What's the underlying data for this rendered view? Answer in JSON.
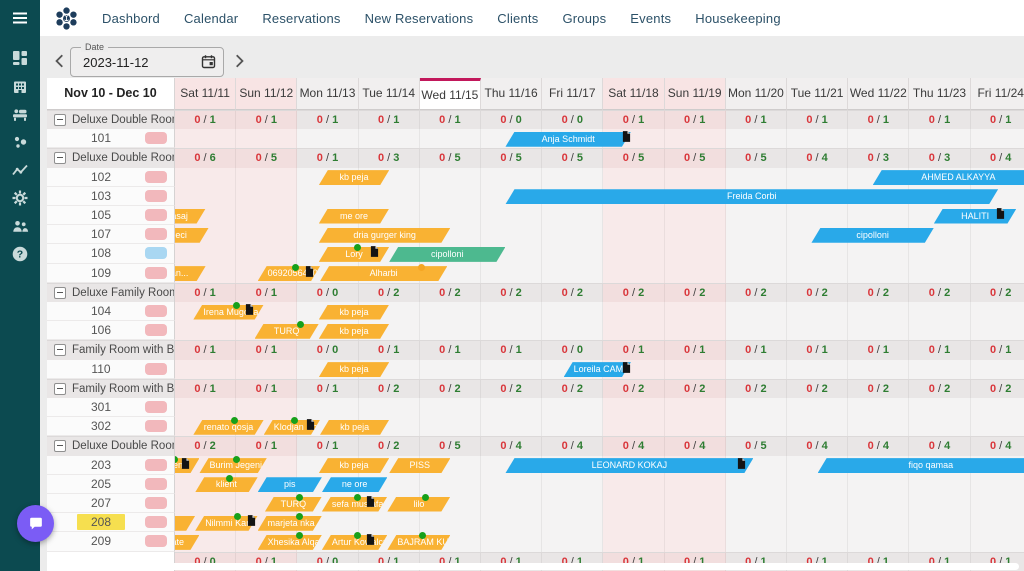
{
  "app_nav": {
    "items": [
      "Dashbord",
      "Calendar",
      "Reservations",
      "New Reservations",
      "Clients",
      "Groups",
      "Events",
      "Housekeeping"
    ]
  },
  "sidebar": {
    "icons": [
      "menu-icon",
      "dashboard-icon",
      "hotel-icon",
      "front-desk-icon",
      "clients-icon",
      "analytics-icon",
      "settings-gear-icon",
      "users-icon",
      "help-icon"
    ],
    "chat_fab_icon": "chat-bubble-icon"
  },
  "toolbar": {
    "date_label": "Date",
    "date_value": "2023-11-12",
    "prev_icon": "chevron-left-icon",
    "next_icon": "chevron-right-icon",
    "calendar_icon": "calendar-icon"
  },
  "grid": {
    "range_label": "Nov 10 - Dec 10",
    "today_index": 4,
    "days": [
      {
        "label": "Sat 11/11",
        "weekend": true
      },
      {
        "label": "Sun 11/12",
        "weekend": true
      },
      {
        "label": "Mon 11/13",
        "weekend": false
      },
      {
        "label": "Tue 11/14",
        "weekend": false
      },
      {
        "label": "Wed 11/15",
        "weekend": false
      },
      {
        "label": "Thu 11/16",
        "weekend": false
      },
      {
        "label": "Fri 11/17",
        "weekend": false
      },
      {
        "label": "Sat 11/18",
        "weekend": true
      },
      {
        "label": "Sun 11/19",
        "weekend": true
      },
      {
        "label": "Mon 11/20",
        "weekend": false
      },
      {
        "label": "Tue 11/21",
        "weekend": false
      },
      {
        "label": "Wed 11/22",
        "weekend": false
      },
      {
        "label": "Thu 11/23",
        "weekend": false
      },
      {
        "label": "Fri 11/24",
        "weekend": false
      }
    ],
    "colors": {
      "bar_yellow": "#F9B233",
      "bar_blue": "#29A9E9",
      "bar_green": "#4DB98F",
      "occupied_red": "#D9363B",
      "free_green": "#2E7D32",
      "today_accent": "#C2185B",
      "pill_pink": "#F2B8BC",
      "pill_blue": "#A9D7F2",
      "room_highlight_yellow": "#F6DF4F",
      "fab_purple": "#7B5CF5",
      "sidebar_teal": "#0C4A50"
    },
    "sections": [
      {
        "label": "Deluxe Double Room",
        "occupancy": [
          "0/1",
          "0/1",
          "0/1",
          "0/1",
          "0/1",
          "0/0",
          "0/0",
          "0/1",
          "0/1",
          "0/1",
          "0/1",
          "0/1",
          "0/1",
          "0/1"
        ],
        "rooms": [
          {
            "number": "101",
            "pill": "pink",
            "bars": [
              {
                "label": "Anja Schmidt",
                "color": "blue",
                "start": 5.4,
                "end": 7.45,
                "markers": [
                  [
                    "d",
                    0.96
                  ]
                ]
              }
            ]
          }
        ]
      },
      {
        "label": "Deluxe Double Room wi",
        "occupancy": [
          "0/6",
          "0/5",
          "0/1",
          "0/3",
          "0/5",
          "0/5",
          "0/5",
          "0/5",
          "0/5",
          "0/5",
          "0/4",
          "0/3",
          "0/3",
          "0/4"
        ],
        "rooms": [
          {
            "number": "102",
            "pill": "pink",
            "bars": [
              {
                "label": "kb peja",
                "color": "yellow",
                "start": 2.35,
                "end": 3.5,
                "markers": []
              },
              {
                "label": "AHMED ALKAYYA",
                "color": "blue",
                "start": 11.4,
                "end": 14.2,
                "markers": []
              }
            ]
          },
          {
            "number": "103",
            "pill": "pink",
            "bars": [
              {
                "label": "Freida Corbi",
                "color": "blue",
                "start": 5.4,
                "end": 13.45,
                "markers": []
              }
            ]
          },
          {
            "number": "105",
            "pill": "pink",
            "bars": [
              {
                "label": "asaj",
                "color": "yellow",
                "start": -0.35,
                "end": 0.5,
                "markers": [
                  [
                    "g",
                    0.1
                  ]
                ]
              },
              {
                "label": "me ore",
                "color": "yellow",
                "start": 2.35,
                "end": 3.5,
                "markers": []
              },
              {
                "label": "HALITI",
                "color": "blue",
                "start": 12.4,
                "end": 13.75,
                "markers": [
                  [
                    "d",
                    0.8
                  ]
                ]
              }
            ]
          },
          {
            "number": "107",
            "pill": "pink",
            "bars": [
              {
                "label": "eci",
                "color": "yellow",
                "start": -0.35,
                "end": 0.55,
                "markers": []
              },
              {
                "label": "dria gurger king",
                "color": "yellow",
                "start": 2.35,
                "end": 4.5,
                "markers": []
              },
              {
                "label": "cipolloni",
                "color": "blue",
                "start": 10.4,
                "end": 12.4,
                "markers": []
              }
            ]
          },
          {
            "number": "108",
            "pill": "blue",
            "bars": [
              {
                "label": "Lory",
                "color": "yellow",
                "start": 2.35,
                "end": 3.5,
                "markers": [
                  [
                    "g",
                    0.55
                  ],
                  [
                    "d",
                    0.78
                  ]
                ]
              },
              {
                "label": "cipolloni",
                "color": "green",
                "start": 3.5,
                "end": 5.4,
                "markers": []
              }
            ]
          },
          {
            "number": "109",
            "pill": "pink",
            "bars": [
              {
                "label": "an...",
                "color": "yellow",
                "start": -0.35,
                "end": 0.5,
                "markers": [
                  [
                    "g",
                    0.1
                  ]
                ]
              },
              {
                "label": "0692056400",
                "color": "yellow",
                "start": 1.35,
                "end": 2.37,
                "markers": [
                  [
                    "g",
                    0.6
                  ],
                  [
                    "d",
                    0.82
                  ]
                ]
              },
              {
                "label": "Alharbi",
                "color": "yellow",
                "start": 2.37,
                "end": 4.45,
                "markers": [
                  [
                    "o",
                    0.8
                  ]
                ]
              }
            ]
          }
        ]
      },
      {
        "label": "Deluxe Family Room",
        "occupancy": [
          "0/1",
          "0/1",
          "0/0",
          "0/2",
          "0/2",
          "0/2",
          "0/2",
          "0/2",
          "0/2",
          "0/2",
          "0/2",
          "0/2",
          "0/2",
          "0/2"
        ],
        "rooms": [
          {
            "number": "104",
            "pill": "pink",
            "bars": [
              {
                "label": "Irena Mugosa",
                "color": "yellow",
                "start": 0.3,
                "end": 1.45,
                "markers": [
                  [
                    "g",
                    0.62
                  ],
                  [
                    "d",
                    0.78
                  ]
                ]
              },
              {
                "label": "kb peja",
                "color": "yellow",
                "start": 2.35,
                "end": 3.5,
                "markers": []
              }
            ]
          },
          {
            "number": "106",
            "pill": "pink",
            "bars": [
              {
                "label": "TURQ",
                "color": "yellow",
                "start": 1.3,
                "end": 2.35,
                "markers": [
                  [
                    "g",
                    0.72
                  ]
                ]
              },
              {
                "label": "kb peja",
                "color": "yellow",
                "start": 2.35,
                "end": 3.5,
                "markers": []
              }
            ]
          }
        ]
      },
      {
        "label": "Family Room with Balco",
        "occupancy": [
          "0/1",
          "0/1",
          "0/0",
          "0/1",
          "0/1",
          "0/1",
          "0/0",
          "0/1",
          "0/1",
          "0/1",
          "0/1",
          "0/1",
          "0/1",
          "0/1"
        ],
        "rooms": [
          {
            "number": "110",
            "pill": "pink",
            "bars": [
              {
                "label": "kb peja",
                "color": "yellow",
                "start": 2.35,
                "end": 3.5,
                "markers": []
              },
              {
                "label": "Loreila CAMPA...",
                "color": "blue",
                "start": 6.35,
                "end": 7.45,
                "markers": [
                  [
                    "d",
                    0.92
                  ]
                ]
              }
            ]
          }
        ]
      },
      {
        "label": "Family Room with Balco",
        "occupancy": [
          "0/1",
          "0/1",
          "0/1",
          "0/2",
          "0/2",
          "0/2",
          "0/2",
          "0/2",
          "0/2",
          "0/2",
          "0/2",
          "0/2",
          "0/2",
          "0/2"
        ],
        "rooms": [
          {
            "number": "301",
            "pill": "pink",
            "bars": []
          },
          {
            "number": "302",
            "pill": "pink",
            "bars": [
              {
                "label": "renato qosja",
                "color": "yellow",
                "start": 0.3,
                "end": 1.45,
                "markers": [
                  [
                    "g",
                    0.58
                  ]
                ]
              },
              {
                "label": "Klodjan Khitr...",
                "color": "yellow",
                "start": 1.45,
                "end": 2.37,
                "markers": [
                  [
                    "g",
                    0.55
                  ],
                  [
                    "d",
                    0.82
                  ]
                ]
              },
              {
                "label": "kb peja",
                "color": "yellow",
                "start": 2.37,
                "end": 3.5,
                "markers": []
              }
            ]
          }
        ]
      },
      {
        "label": "Deluxe Double Room wi",
        "occupancy": [
          "0/2",
          "0/1",
          "0/1",
          "0/2",
          "0/5",
          "0/4",
          "0/4",
          "0/4",
          "0/4",
          "0/5",
          "0/4",
          "0/4",
          "0/4",
          "0/4"
        ],
        "rooms": [
          {
            "number": "203",
            "pill": "pink",
            "bars": [
              {
                "label": "geni",
                "color": "yellow",
                "start": -0.35,
                "end": 0.4,
                "markers": [
                  [
                    "g",
                    0.45
                  ],
                  [
                    "d",
                    0.68
                  ]
                ]
              },
              {
                "label": "Burim Jegeni",
                "color": "yellow",
                "start": 0.4,
                "end": 1.5,
                "markers": [
                  [
                    "g",
                    0.55
                  ]
                ]
              },
              {
                "label": "kb peja",
                "color": "yellow",
                "start": 2.35,
                "end": 3.5,
                "markers": []
              },
              {
                "label": "PISS",
                "color": "yellow",
                "start": 3.5,
                "end": 4.5,
                "markers": []
              },
              {
                "label": "LEONARD KOKAJ",
                "color": "blue",
                "start": 5.4,
                "end": 9.45,
                "markers": [
                  [
                    "d",
                    0.95
                  ]
                ]
              },
              {
                "label": "fiqo qamaa",
                "color": "blue",
                "start": 10.5,
                "end": 14.2,
                "markers": []
              }
            ]
          },
          {
            "number": "205",
            "pill": "pink",
            "bars": [
              {
                "label": "klient",
                "color": "yellow",
                "start": 0.33,
                "end": 1.35,
                "markers": [
                  [
                    "g",
                    0.55
                  ]
                ]
              },
              {
                "label": "pis",
                "color": "blue",
                "start": 1.35,
                "end": 2.4,
                "markers": []
              },
              {
                "label": "ne ore",
                "color": "blue",
                "start": 2.4,
                "end": 3.47,
                "markers": []
              }
            ]
          },
          {
            "number": "207",
            "pill": "pink",
            "bars": [
              {
                "label": "TURQ",
                "color": "yellow",
                "start": 1.47,
                "end": 2.4,
                "markers": [
                  [
                    "g",
                    0.6
                  ]
                ]
              },
              {
                "label": "sefa mustafa",
                "color": "yellow",
                "start": 2.4,
                "end": 3.47,
                "markers": [
                  [
                    "g",
                    0.55
                  ],
                  [
                    "d",
                    0.72
                  ]
                ]
              },
              {
                "label": "lilo",
                "color": "yellow",
                "start": 3.47,
                "end": 4.5,
                "markers": [
                  [
                    "g",
                    0.6
                  ]
                ]
              }
            ]
          },
          {
            "number": "208",
            "pill": "pink",
            "highlight": true,
            "bars": [
              {
                "label": "",
                "color": "yellow",
                "start": -0.35,
                "end": 0.33,
                "markers": [
                  [
                    "g",
                    0.2
                  ]
                ]
              },
              {
                "label": "Nilmmi Kanad...",
                "color": "yellow",
                "start": 0.33,
                "end": 1.35,
                "markers": [
                  [
                    "g",
                    0.68
                  ],
                  [
                    "d",
                    0.88
                  ]
                ]
              },
              {
                "label": "marjeta nka",
                "color": "yellow",
                "start": 1.35,
                "end": 2.4,
                "markers": [
                  [
                    "g",
                    0.65
                  ]
                ]
              }
            ]
          },
          {
            "number": "209",
            "pill": "pink",
            "bars": [
              {
                "label": "tate",
                "color": "yellow",
                "start": -0.35,
                "end": 0.4,
                "markers": [
                  [
                    "g",
                    0.2
                  ]
                ]
              },
              {
                "label": "Xhesika Alqani",
                "color": "yellow",
                "start": 1.35,
                "end": 2.4,
                "markers": [
                  [
                    "g",
                    0.65
                  ]
                ]
              },
              {
                "label": "Artur Kowalczyk",
                "color": "yellow",
                "start": 2.4,
                "end": 3.47,
                "markers": [
                  [
                    "g",
                    0.55
                  ],
                  [
                    "d",
                    0.72
                  ]
                ]
              },
              {
                "label": "BAJRAM KUQI",
                "color": "yellow",
                "start": 3.47,
                "end": 4.5,
                "markers": [
                  [
                    "g",
                    0.55
                  ]
                ]
              }
            ]
          }
        ]
      },
      {
        "label": "",
        "occupancy": [
          "0/0",
          "0/1",
          "0/0",
          "0/1",
          "0/1",
          "0/1",
          "0/1",
          "0/1",
          "0/1",
          "0/1",
          "0/1",
          "0/1",
          "0/1",
          "0/1"
        ],
        "rooms": []
      }
    ]
  }
}
